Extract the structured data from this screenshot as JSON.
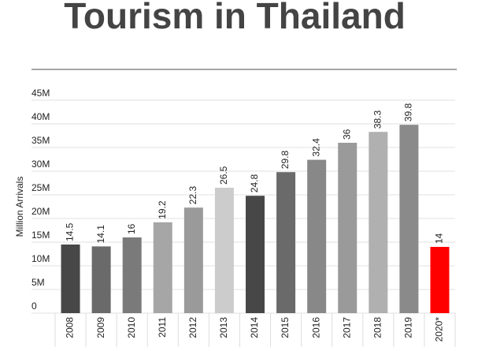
{
  "chart_data": {
    "type": "bar",
    "title": "Tourism in Thailand",
    "y_label": "Million Arrivals",
    "categories": [
      "2008",
      "2009",
      "2010",
      "2011",
      "2012",
      "2013",
      "2014",
      "2015",
      "2016",
      "2017",
      "2018",
      "2019",
      "2020*"
    ],
    "values": [
      14.5,
      14.1,
      16,
      19.2,
      22.3,
      26.5,
      24.8,
      29.8,
      32.4,
      36,
      38.3,
      39.8,
      14
    ],
    "colors": [
      "#474747",
      "#6a6a6a",
      "#7a7a7a",
      "#a6a6a6",
      "#9a9a9a",
      "#cccccc",
      "#474747",
      "#6a6a6a",
      "#888888",
      "#9a9a9a",
      "#b0b0b0",
      "#8a8a8a",
      "#ff0000"
    ],
    "ylim": [
      0,
      45
    ],
    "yticks": [
      0,
      {
        "value": 5,
        "label": "5M"
      },
      {
        "value": 10,
        "label": "10M"
      },
      {
        "value": 15,
        "label": "15M"
      },
      {
        "value": 20,
        "label": "20M"
      },
      {
        "value": 25,
        "label": "25M"
      },
      {
        "value": 30,
        "label": "30M"
      },
      {
        "value": 35,
        "label": "35M"
      },
      {
        "value": 40,
        "label": "40M"
      },
      {
        "value": 45,
        "label": "45M"
      }
    ],
    "grid": true
  }
}
